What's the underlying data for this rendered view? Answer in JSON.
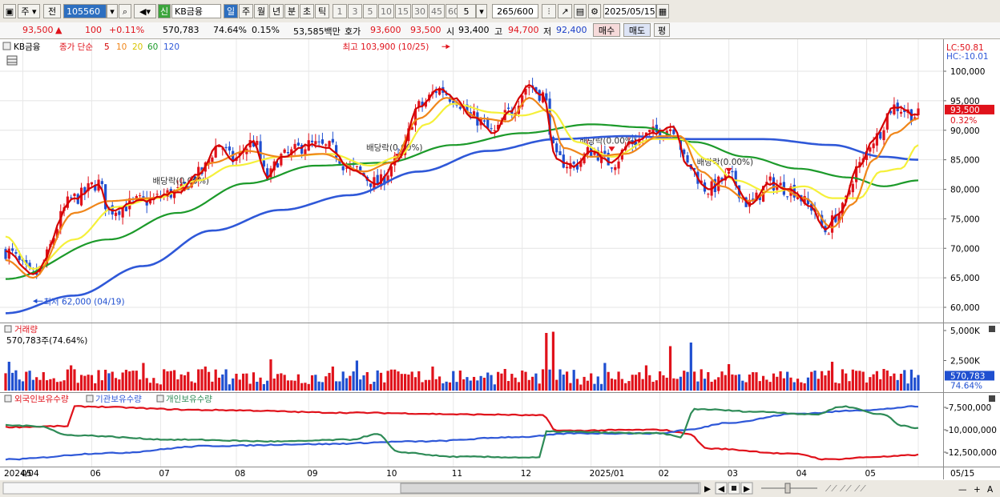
{
  "toolbar": {
    "mode": "주",
    "prev": "전",
    "code": "105560",
    "credit": "신",
    "name": "KB금융",
    "periods": [
      "일",
      "주",
      "월",
      "년",
      "분",
      "초",
      "틱"
    ],
    "minutes": [
      "1",
      "3",
      "5",
      "10",
      "15",
      "30",
      "45",
      "60"
    ],
    "unit": "5",
    "count": "265",
    "count_total": "/600",
    "date": "2025/05/15"
  },
  "info": {
    "price": "93,500",
    "arrow": "▲",
    "change": "100",
    "change_pct": "+0.11%",
    "volume": "570,783",
    "vol_ratio": "74.64%",
    "turnover": "0.15%",
    "amount": "53,585백만",
    "quote_label": "호가",
    "ask": "93,600",
    "bid": "93,500",
    "open_label": "시",
    "open": "93,400",
    "high_label": "고",
    "high": "94,700",
    "low_label": "저",
    "low": "92,400",
    "buy": "매수",
    "sell": "매도",
    "eval": "평"
  },
  "colors": {
    "up": "#e0121b",
    "down": "#1f4fd0",
    "ma5": "#d40000",
    "ma10": "#f0861a",
    "ma20": "#f5f03a",
    "ma60": "#1c9a2a",
    "ma120": "#2f58d8",
    "foreign": "#e0121b",
    "inst": "#2f58d8",
    "indiv": "#2e8b57"
  },
  "chart_data": [
    {
      "type": "candlestick",
      "title": "KB금융",
      "legend": [
        "종가 단순",
        "5",
        "10",
        "20",
        "60",
        "120"
      ],
      "y_ticks": [
        "100,000",
        "95,000",
        "90,000",
        "85,000",
        "80,000",
        "75,000",
        "70,000",
        "65,000",
        "60,000"
      ],
      "ylim": [
        57000,
        103900
      ],
      "x_ticks": [
        "2024/04",
        "05",
        "06",
        "07",
        "08",
        "09",
        "10",
        "11",
        "12",
        "2025/01",
        "02",
        "03",
        "04",
        "05",
        "05/15"
      ],
      "x_tick_pos": [
        0,
        5,
        25,
        45,
        67,
        88,
        111,
        130,
        150,
        170,
        190,
        210,
        230,
        250,
        265
      ],
      "lc": "LC:50.81",
      "hc": "HC:-10.01",
      "last_price": "93,500",
      "last_pct": "0.32%",
      "annotations": [
        {
          "text": "최고 103,900 (10/25)",
          "index": 129,
          "value": 103900
        },
        {
          "text": "최저 62,000 (04/19)",
          "index": 8,
          "value": 62000
        },
        {
          "text": "배당락(0.00%)",
          "index": 52,
          "value": 79600
        },
        {
          "text": "배당락(0.00%)",
          "index": 114,
          "value": 85200
        },
        {
          "text": "배당락(0.00%)",
          "index": 176,
          "value": 86400
        },
        {
          "text": "배당락(0.00%)",
          "index": 210,
          "value": 82800
        }
      ],
      "series": [
        {
          "name": "5",
          "anchors": [
            [
              0,
              69500
            ],
            [
              8,
              65500
            ],
            [
              20,
              78500
            ],
            [
              27,
              81000
            ],
            [
              30,
              76500
            ],
            [
              40,
              78000
            ],
            [
              50,
              79500
            ],
            [
              56,
              82500
            ],
            [
              62,
              87500
            ],
            [
              66,
              85000
            ],
            [
              72,
              88000
            ],
            [
              76,
              82000
            ],
            [
              80,
              85500
            ],
            [
              88,
              87500
            ],
            [
              94,
              87000
            ],
            [
              100,
              83500
            ],
            [
              108,
              81000
            ],
            [
              114,
              85000
            ],
            [
              120,
              94000
            ],
            [
              126,
              97000
            ],
            [
              130,
              95500
            ],
            [
              136,
              92000
            ],
            [
              142,
              89500
            ],
            [
              146,
              93000
            ],
            [
              152,
              97500
            ],
            [
              156,
              96000
            ],
            [
              160,
              85000
            ],
            [
              165,
              84000
            ],
            [
              170,
              86500
            ],
            [
              176,
              84500
            ],
            [
              182,
              88000
            ],
            [
              188,
              89500
            ],
            [
              194,
              90500
            ],
            [
              198,
              84000
            ],
            [
              204,
              80000
            ],
            [
              210,
              82000
            ],
            [
              216,
              77500
            ],
            [
              222,
              81000
            ],
            [
              228,
              80000
            ],
            [
              234,
              77000
            ],
            [
              238,
              73000
            ],
            [
              242,
              76000
            ],
            [
              248,
              84000
            ],
            [
              252,
              88500
            ],
            [
              258,
              94000
            ],
            [
              265,
              92500
            ]
          ]
        },
        {
          "name": "10",
          "anchors": [
            [
              0,
              68000
            ],
            [
              8,
              65000
            ],
            [
              20,
              76000
            ],
            [
              30,
              78000
            ],
            [
              42,
              78500
            ],
            [
              52,
              80000
            ],
            [
              60,
              84500
            ],
            [
              70,
              86500
            ],
            [
              80,
              85500
            ],
            [
              92,
              86000
            ],
            [
              104,
              83000
            ],
            [
              112,
              84500
            ],
            [
              120,
              92000
            ],
            [
              128,
              95500
            ],
            [
              138,
              92000
            ],
            [
              146,
              91500
            ],
            [
              152,
              95500
            ],
            [
              158,
              93000
            ],
            [
              162,
              87000
            ],
            [
              170,
              85500
            ],
            [
              180,
              86000
            ],
            [
              190,
              89000
            ],
            [
              196,
              89000
            ],
            [
              202,
              83000
            ],
            [
              208,
              80500
            ],
            [
              216,
              78000
            ],
            [
              224,
              80500
            ],
            [
              232,
              78500
            ],
            [
              240,
              73500
            ],
            [
              246,
              77500
            ],
            [
              252,
              85000
            ],
            [
              258,
              89500
            ],
            [
              265,
              92000
            ]
          ]
        },
        {
          "name": "20",
          "anchors": [
            [
              0,
              72000
            ],
            [
              8,
              66500
            ],
            [
              20,
              71500
            ],
            [
              32,
              77000
            ],
            [
              44,
              78500
            ],
            [
              56,
              81500
            ],
            [
              66,
              84000
            ],
            [
              80,
              85500
            ],
            [
              94,
              86000
            ],
            [
              106,
              84000
            ],
            [
              114,
              85500
            ],
            [
              122,
              91000
            ],
            [
              130,
              94500
            ],
            [
              142,
              93000
            ],
            [
              150,
              92500
            ],
            [
              158,
              93500
            ],
            [
              166,
              88000
            ],
            [
              176,
              85500
            ],
            [
              188,
              88500
            ],
            [
              196,
              88500
            ],
            [
              204,
              85000
            ],
            [
              212,
              81500
            ],
            [
              222,
              79500
            ],
            [
              232,
              80500
            ],
            [
              240,
              78500
            ],
            [
              248,
              78500
            ],
            [
              254,
              83000
            ],
            [
              260,
              83500
            ],
            [
              265,
              87500
            ]
          ]
        },
        {
          "name": "60",
          "anchors": [
            [
              0,
              64800
            ],
            [
              30,
              71500
            ],
            [
              50,
              76000
            ],
            [
              70,
              81000
            ],
            [
              90,
              84000
            ],
            [
              110,
              84500
            ],
            [
              130,
              87500
            ],
            [
              150,
              89500
            ],
            [
              170,
              91000
            ],
            [
              185,
              90500
            ],
            [
              200,
              88000
            ],
            [
              215,
              85500
            ],
            [
              230,
              83500
            ],
            [
              245,
              82000
            ],
            [
              255,
              80500
            ],
            [
              265,
              81500
            ]
          ]
        },
        {
          "name": "120",
          "anchors": [
            [
              0,
              59000
            ],
            [
              20,
              62000
            ],
            [
              40,
              67000
            ],
            [
              60,
              73000
            ],
            [
              80,
              76500
            ],
            [
              100,
              79000
            ],
            [
              120,
              83000
            ],
            [
              140,
              86500
            ],
            [
              160,
              88500
            ],
            [
              180,
              89000
            ],
            [
              200,
              88500
            ],
            [
              220,
              88500
            ],
            [
              240,
              87500
            ],
            [
              255,
              85500
            ],
            [
              265,
              85000
            ]
          ]
        }
      ]
    },
    {
      "type": "bar",
      "title": "거래량",
      "subtitle": "570,783주(74.64%)",
      "y_ticks": [
        "5,000K",
        "2,500K"
      ],
      "ylim": [
        0,
        5200000
      ],
      "last_value": "570,783",
      "last_pct": "74.64%",
      "highlights": [
        [
          1,
          2400000
        ],
        [
          19,
          2100000
        ],
        [
          40,
          2300000
        ],
        [
          58,
          2000000
        ],
        [
          77,
          2600000
        ],
        [
          95,
          2000000
        ],
        [
          102,
          2500000
        ],
        [
          124,
          2000000
        ],
        [
          145,
          1800000
        ],
        [
          157,
          4800000
        ],
        [
          159,
          4900000
        ],
        [
          174,
          2300000
        ],
        [
          186,
          2100000
        ],
        [
          193,
          3700000
        ],
        [
          199,
          4000000
        ],
        [
          210,
          2200000
        ],
        [
          240,
          2400000
        ],
        [
          255,
          1800000
        ]
      ]
    },
    {
      "type": "line",
      "legend": [
        "외국인보유수량",
        "기관보유수량",
        "개인보유수량"
      ],
      "y_ticks": [
        "-7,500,000",
        "-10,000,000",
        "-12,500,000"
      ],
      "ylim": [
        -13800000,
        -6000000
      ],
      "series": [
        {
          "name": "외국인보유수량",
          "anchors": [
            [
              0,
              -9700000
            ],
            [
              18,
              -9600000
            ],
            [
              20,
              -7400000
            ],
            [
              60,
              -7800000
            ],
            [
              100,
              -8100000
            ],
            [
              140,
              -8300000
            ],
            [
              156,
              -8400000
            ],
            [
              160,
              -10100000
            ],
            [
              190,
              -10000000
            ],
            [
              198,
              -10400000
            ],
            [
              204,
              -12100000
            ],
            [
              230,
              -12700000
            ],
            [
              238,
              -13300000
            ],
            [
              255,
              -13000000
            ],
            [
              265,
              -12800000
            ]
          ]
        },
        {
          "name": "기관보유수량",
          "anchors": [
            [
              0,
              -13300000
            ],
            [
              30,
              -12600000
            ],
            [
              60,
              -11800000
            ],
            [
              90,
              -11600000
            ],
            [
              120,
              -11300000
            ],
            [
              150,
              -10800000
            ],
            [
              165,
              -10400000
            ],
            [
              190,
              -10400000
            ],
            [
              198,
              -10000000
            ],
            [
              210,
              -9200000
            ],
            [
              230,
              -8200000
            ],
            [
              250,
              -7800000
            ],
            [
              265,
              -7400000
            ]
          ]
        },
        {
          "name": "개인보유수량",
          "anchors": [
            [
              0,
              -9500000
            ],
            [
              10,
              -9600000
            ],
            [
              18,
              -10600000
            ],
            [
              50,
              -11100000
            ],
            [
              80,
              -11300000
            ],
            [
              100,
              -11100000
            ],
            [
              108,
              -10500000
            ],
            [
              114,
              -12500000
            ],
            [
              130,
              -13000000
            ],
            [
              155,
              -13100000
            ],
            [
              157,
              -10200000
            ],
            [
              190,
              -10400000
            ],
            [
              196,
              -10800000
            ],
            [
              200,
              -7700000
            ],
            [
              220,
              -8000000
            ],
            [
              235,
              -8300000
            ],
            [
              243,
              -7400000
            ],
            [
              255,
              -8300000
            ],
            [
              260,
              -9500000
            ],
            [
              265,
              -9800000
            ]
          ]
        }
      ]
    }
  ],
  "bottom": {
    "arrows": [
      "◀",
      "▶"
    ],
    "zoom_minus": "—",
    "zoom_plus": "+",
    "font_a": "A"
  }
}
